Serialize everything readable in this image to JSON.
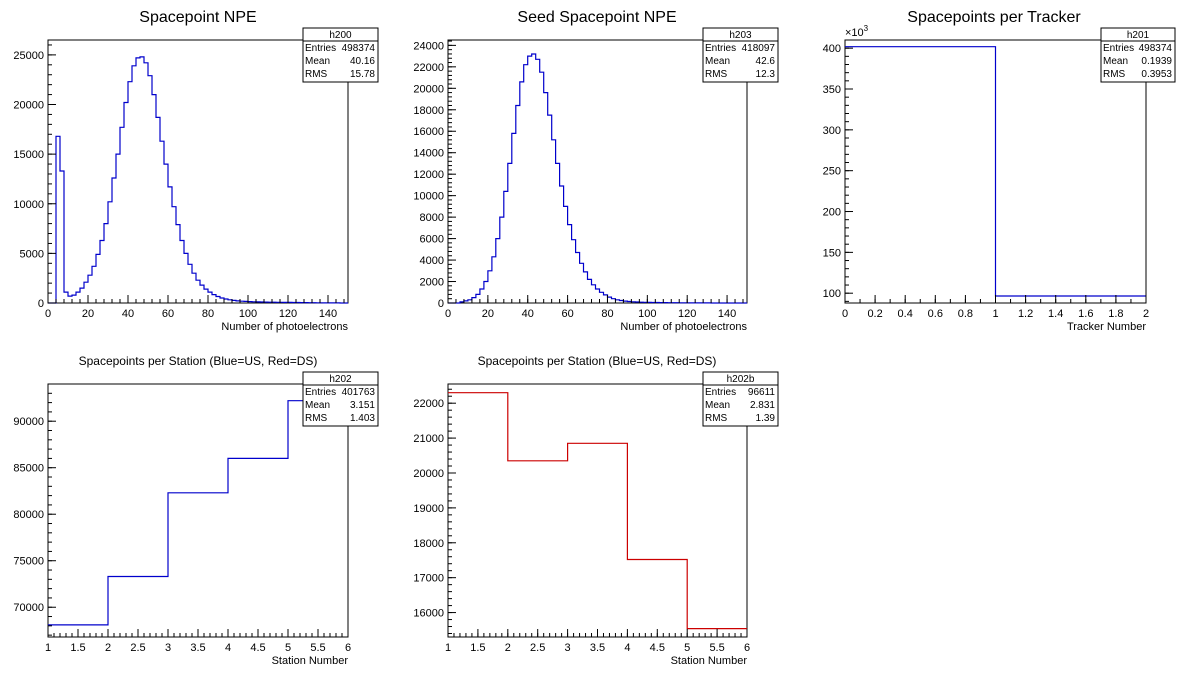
{
  "colors": {
    "blue": "#0000cc",
    "red": "#cc0000",
    "frame": "#000000"
  },
  "chart_data": [
    {
      "type": "bar",
      "style": "step-histogram",
      "title": "Spacepoint NPE",
      "title_size": "large",
      "xlabel": "Number of photoelectrons",
      "ylabel": "",
      "xlim": [
        0,
        150
      ],
      "ylim": [
        0,
        26500
      ],
      "xticks": [
        0,
        20,
        40,
        60,
        80,
        100,
        120,
        140
      ],
      "xtick_labels": [
        "0",
        "20",
        "40",
        "60",
        "80",
        "100",
        "120",
        "140"
      ],
      "yticks": [
        0,
        5000,
        10000,
        15000,
        20000,
        25000
      ],
      "ytick_labels": [
        "0",
        "5000",
        "10000",
        "15000",
        "20000",
        "25000"
      ],
      "grid": false,
      "color": "blue",
      "bin_width": 2,
      "values": [
        0,
        0,
        16800,
        13300,
        1100,
        700,
        800,
        1100,
        1500,
        2100,
        2800,
        3700,
        4900,
        6300,
        8000,
        10200,
        12600,
        15000,
        17700,
        20200,
        22300,
        23900,
        24700,
        24800,
        24200,
        22900,
        21000,
        18700,
        16300,
        14000,
        11700,
        9700,
        7900,
        6300,
        5000,
        3900,
        3000,
        2300,
        1800,
        1400,
        1100,
        850,
        650,
        500,
        400,
        320,
        260,
        210,
        180,
        160,
        140,
        120,
        110,
        100,
        90,
        85,
        80,
        75,
        70,
        65,
        60,
        55,
        50,
        45,
        40,
        35,
        30,
        25,
        20,
        15,
        10,
        8,
        6,
        4,
        2
      ],
      "stats": {
        "name": "h200",
        "entries_label": "Entries",
        "entries": "498374",
        "mean_label": "Mean",
        "mean": "40.16",
        "rms_label": "RMS",
        "rms": "15.78"
      }
    },
    {
      "type": "bar",
      "style": "step-histogram",
      "title": "Seed Spacepoint NPE",
      "title_size": "large",
      "xlabel": "Number of photoelectrons",
      "ylabel": "",
      "xlim": [
        0,
        150
      ],
      "ylim": [
        0,
        24500
      ],
      "xticks": [
        0,
        20,
        40,
        60,
        80,
        100,
        120,
        140
      ],
      "xtick_labels": [
        "0",
        "20",
        "40",
        "60",
        "80",
        "100",
        "120",
        "140"
      ],
      "yticks": [
        0,
        2000,
        4000,
        6000,
        8000,
        10000,
        12000,
        14000,
        16000,
        18000,
        20000,
        22000,
        24000
      ],
      "ytick_labels": [
        "0",
        "2000",
        "4000",
        "6000",
        "8000",
        "10000",
        "12000",
        "14000",
        "16000",
        "18000",
        "20000",
        "22000",
        "24000"
      ],
      "grid": false,
      "color": "blue",
      "bin_width": 2,
      "values": [
        0,
        0,
        0,
        100,
        200,
        300,
        500,
        800,
        1300,
        2000,
        3000,
        4300,
        6000,
        8000,
        10400,
        13000,
        15800,
        18400,
        20600,
        22200,
        23000,
        23200,
        22700,
        21500,
        19600,
        17500,
        15200,
        13000,
        10900,
        9000,
        7300,
        5900,
        4700,
        3700,
        2900,
        2200,
        1700,
        1300,
        1000,
        750,
        550,
        400,
        300,
        230,
        180,
        140,
        110,
        90,
        75,
        65,
        55,
        48,
        42,
        38,
        34,
        30,
        27,
        24,
        21,
        18,
        15,
        12,
        10,
        8,
        6,
        5,
        4,
        3,
        2,
        1,
        1,
        0,
        0,
        0,
        0
      ],
      "stats": {
        "name": "h203",
        "entries_label": "Entries",
        "entries": "418097",
        "mean_label": "Mean",
        "mean": "42.6",
        "rms_label": "RMS",
        "rms": "12.3"
      }
    },
    {
      "type": "bar",
      "style": "step-histogram",
      "title": "Spacepoints per Tracker",
      "title_size": "large",
      "xlabel": "Tracker Number",
      "ylabel": "",
      "y_exponent_label": "×10",
      "y_exponent_power": "3",
      "xlim": [
        0,
        2
      ],
      "ylim": [
        88,
        410
      ],
      "xticks": [
        0,
        0.2,
        0.4,
        0.6,
        0.8,
        1,
        1.2,
        1.4,
        1.6,
        1.8,
        2
      ],
      "xtick_labels": [
        "0",
        "0.2",
        "0.4",
        "0.6",
        "0.8",
        "1",
        "1.2",
        "1.4",
        "1.6",
        "1.8",
        "2"
      ],
      "yticks": [
        100,
        150,
        200,
        250,
        300,
        350,
        400
      ],
      "ytick_labels": [
        "100",
        "150",
        "200",
        "250",
        "300",
        "350",
        "400"
      ],
      "grid": false,
      "color": "blue",
      "bin_edges": [
        0,
        1,
        2
      ],
      "values": [
        401.8,
        96.6
      ],
      "stats": {
        "name": "h201",
        "entries_label": "Entries",
        "entries": "498374",
        "mean_label": "Mean",
        "mean": "0.1939",
        "rms_label": "RMS",
        "rms": "0.3953"
      }
    },
    {
      "type": "bar",
      "style": "step-histogram",
      "title": "Spacepoints per Station (Blue=US, Red=DS)",
      "title_size": "small",
      "xlabel": "Station Number",
      "ylabel": "",
      "xlim": [
        1,
        6
      ],
      "ylim": [
        66800,
        94000
      ],
      "xticks": [
        1,
        1.5,
        2,
        2.5,
        3,
        3.5,
        4,
        4.5,
        5,
        5.5,
        6
      ],
      "xtick_labels": [
        "1",
        "1.5",
        "2",
        "2.5",
        "3",
        "3.5",
        "4",
        "4.5",
        "5",
        "5.5",
        "6"
      ],
      "yticks": [
        70000,
        75000,
        80000,
        85000,
        90000
      ],
      "ytick_labels": [
        "70000",
        "75000",
        "80000",
        "85000",
        "90000"
      ],
      "grid": false,
      "color": "blue",
      "bin_edges": [
        1,
        2,
        3,
        4,
        5,
        6
      ],
      "values": [
        68100,
        73300,
        82300,
        86000,
        92200
      ],
      "stats": {
        "name": "h202",
        "entries_label": "Entries",
        "entries": "401763",
        "mean_label": "Mean",
        "mean": "3.151",
        "rms_label": "RMS",
        "rms": "1.403"
      }
    },
    {
      "type": "bar",
      "style": "step-histogram",
      "title": "Spacepoints per Station (Blue=US, Red=DS)",
      "title_size": "small",
      "xlabel": "Station Number",
      "ylabel": "",
      "xlim": [
        1,
        6
      ],
      "ylim": [
        15300,
        22550
      ],
      "xticks": [
        1,
        1.5,
        2,
        2.5,
        3,
        3.5,
        4,
        4.5,
        5,
        5.5,
        6
      ],
      "xtick_labels": [
        "1",
        "1.5",
        "2",
        "2.5",
        "3",
        "3.5",
        "4",
        "4.5",
        "5",
        "5.5",
        "6"
      ],
      "yticks": [
        16000,
        17000,
        18000,
        19000,
        20000,
        21000,
        22000
      ],
      "ytick_labels": [
        "16000",
        "17000",
        "18000",
        "19000",
        "20000",
        "21000",
        "22000"
      ],
      "grid": false,
      "color": "red",
      "bin_edges": [
        1,
        2,
        3,
        4,
        5,
        6
      ],
      "values": [
        22300,
        20350,
        20850,
        17520,
        15540
      ],
      "stats": {
        "name": "h202b",
        "entries_label": "Entries",
        "entries": "96611",
        "mean_label": "Mean",
        "mean": "2.831",
        "rms_label": "RMS",
        "rms": "1.39"
      }
    }
  ]
}
